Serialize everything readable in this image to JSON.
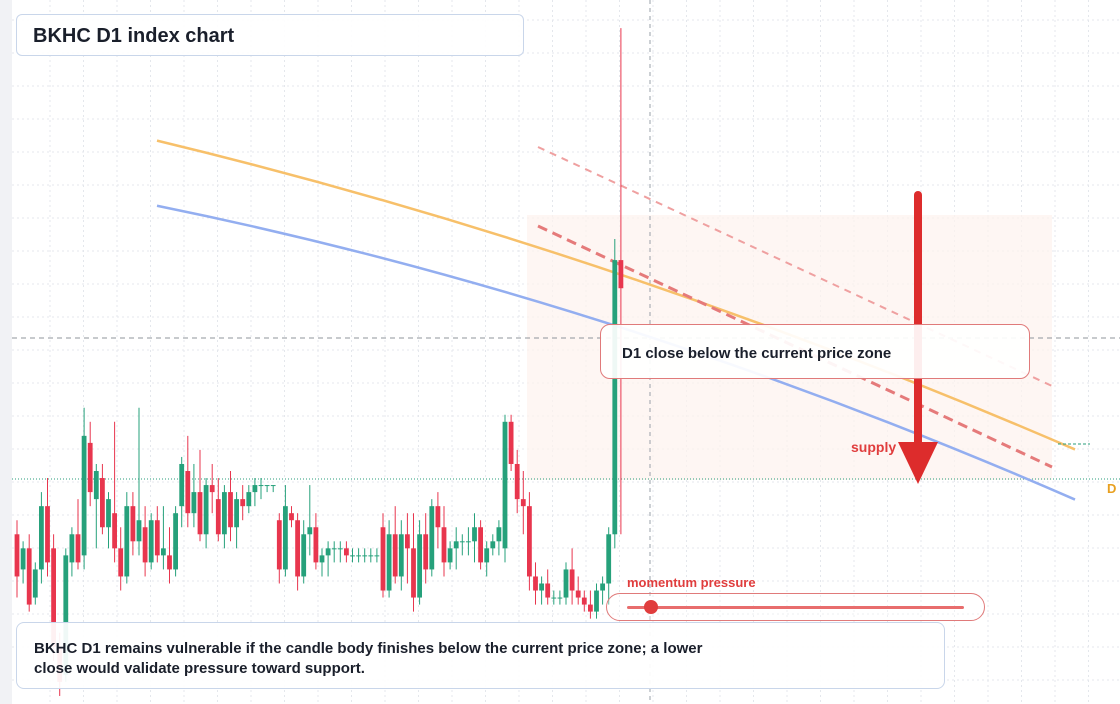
{
  "header": {
    "title": "BKHC D1 index chart"
  },
  "callout": {
    "text": "D1 close below the current price zone"
  },
  "annotations": {
    "supply": "supply",
    "momentum": "momentum pressure",
    "price_marker": "D"
  },
  "footer": {
    "note": "BKHC D1 remains vulnerable if the candle body finishes below the current price zone; a lower close would validate pressure toward support."
  },
  "colors": {
    "bull": "#26a17b",
    "bear": "#e8364e",
    "ma_fast": "#f7c06a",
    "ma_slow": "#93aef0",
    "arrow": "#dd2c2c",
    "trend": "#e57a7a",
    "grid": "#e4e7ec",
    "zone": "#fdf3ef"
  },
  "chart_data": {
    "type": "candlestick",
    "title": "BKHC D1 index chart",
    "timeframe": "D1",
    "y_range": [
      0,
      100
    ],
    "grid": true,
    "candle_count": 100,
    "candles_ohlc": [
      [
        24,
        26,
        15,
        18
      ],
      [
        19,
        23,
        17,
        22
      ],
      [
        22,
        24,
        13,
        14
      ],
      [
        15,
        20,
        14,
        19
      ],
      [
        19,
        30,
        17,
        28
      ],
      [
        28,
        32,
        18,
        20
      ],
      [
        22,
        24,
        6,
        8
      ],
      [
        8,
        10,
        1,
        3
      ],
      [
        4,
        22,
        3,
        21
      ],
      [
        20,
        25,
        18,
        24
      ],
      [
        24,
        29,
        19,
        20
      ],
      [
        21,
        42,
        19,
        38
      ],
      [
        37,
        40,
        28,
        30
      ],
      [
        29,
        34,
        22,
        33
      ],
      [
        32,
        34,
        24,
        25
      ],
      [
        25,
        30,
        22,
        29
      ],
      [
        27,
        40,
        20,
        22
      ],
      [
        22,
        25,
        16,
        18
      ],
      [
        18,
        30,
        17,
        28
      ],
      [
        28,
        30,
        21,
        23
      ],
      [
        23,
        42,
        21,
        26
      ],
      [
        25,
        28,
        18,
        20
      ],
      [
        20,
        27,
        19,
        26
      ],
      [
        26,
        28,
        20,
        21
      ],
      [
        21,
        28,
        19,
        22
      ],
      [
        21,
        25,
        17,
        19
      ],
      [
        19,
        28,
        18,
        27
      ],
      [
        28,
        35,
        25,
        34
      ],
      [
        33,
        38,
        25,
        27
      ],
      [
        27,
        34,
        25,
        30
      ],
      [
        30,
        36,
        23,
        24
      ],
      [
        24,
        32,
        22,
        31
      ],
      [
        31,
        34,
        27,
        30
      ],
      [
        29,
        32,
        23,
        24
      ],
      [
        24,
        31,
        22,
        30
      ],
      [
        30,
        33,
        23,
        25
      ],
      [
        25,
        30,
        22,
        29
      ],
      [
        29,
        31,
        26,
        28
      ],
      [
        28,
        31,
        27,
        30
      ],
      [
        30,
        32,
        28,
        31
      ],
      [
        31,
        32,
        29,
        31
      ],
      [
        31,
        31,
        30,
        31
      ],
      [
        31,
        31,
        30,
        31
      ],
      [
        26,
        27,
        17,
        19
      ],
      [
        19,
        31,
        18,
        28
      ],
      [
        27,
        28,
        25,
        26
      ],
      [
        26,
        27,
        16,
        18
      ],
      [
        18,
        26,
        17,
        24
      ],
      [
        24,
        31,
        21,
        25
      ],
      [
        25,
        27,
        19,
        20
      ],
      [
        20,
        22,
        18,
        21
      ],
      [
        21,
        23,
        18,
        22
      ],
      [
        22,
        23,
        20,
        22
      ],
      [
        22,
        23,
        20,
        22
      ],
      [
        22,
        23,
        20,
        21
      ],
      [
        21,
        22,
        20,
        21
      ],
      [
        21,
        22,
        20,
        21
      ],
      [
        21,
        22,
        20,
        21
      ],
      [
        21,
        22,
        20,
        21
      ],
      [
        21,
        22,
        20,
        21
      ],
      [
        25,
        27,
        15,
        16
      ],
      [
        16,
        26,
        15,
        24
      ],
      [
        24,
        28,
        17,
        18
      ],
      [
        18,
        26,
        16,
        24
      ],
      [
        24,
        27,
        17,
        22
      ],
      [
        22,
        27,
        13,
        15
      ],
      [
        15,
        26,
        14,
        24
      ],
      [
        24,
        27,
        17,
        19
      ],
      [
        19,
        29,
        18,
        28
      ],
      [
        28,
        30,
        22,
        25
      ],
      [
        25,
        28,
        18,
        20
      ],
      [
        20,
        23,
        19,
        22
      ],
      [
        22,
        25,
        19,
        23
      ],
      [
        23,
        24,
        21,
        23
      ],
      [
        23,
        25,
        21,
        23
      ],
      [
        23,
        27,
        20,
        25
      ],
      [
        25,
        26,
        19,
        20
      ],
      [
        20,
        23,
        18,
        22
      ],
      [
        22,
        24,
        21,
        23
      ],
      [
        23,
        26,
        21,
        25
      ],
      [
        22,
        41,
        20,
        40
      ],
      [
        40,
        41,
        33,
        34
      ],
      [
        34,
        36,
        27,
        29
      ],
      [
        29,
        33,
        24,
        28
      ],
      [
        28,
        30,
        16,
        18
      ],
      [
        18,
        20,
        14,
        16
      ],
      [
        16,
        18,
        14,
        17
      ],
      [
        17,
        19,
        14,
        15
      ],
      [
        15,
        16,
        14,
        15
      ],
      [
        15,
        16,
        14,
        15
      ],
      [
        15,
        20,
        14,
        19
      ],
      [
        19,
        22,
        14,
        16
      ],
      [
        16,
        18,
        14,
        15
      ],
      [
        15,
        16,
        13,
        14
      ],
      [
        14,
        16,
        12,
        13
      ],
      [
        13,
        17,
        12,
        16
      ],
      [
        16,
        18,
        14,
        17
      ],
      [
        17,
        25,
        14,
        24
      ],
      [
        24,
        66,
        22,
        63
      ],
      [
        63,
        96,
        24,
        59
      ]
    ],
    "moving_averages": [
      {
        "name": "fast",
        "start_value": 80,
        "end_value": 52
      },
      {
        "name": "slow",
        "start_value": 76,
        "end_value": 48
      }
    ]
  }
}
